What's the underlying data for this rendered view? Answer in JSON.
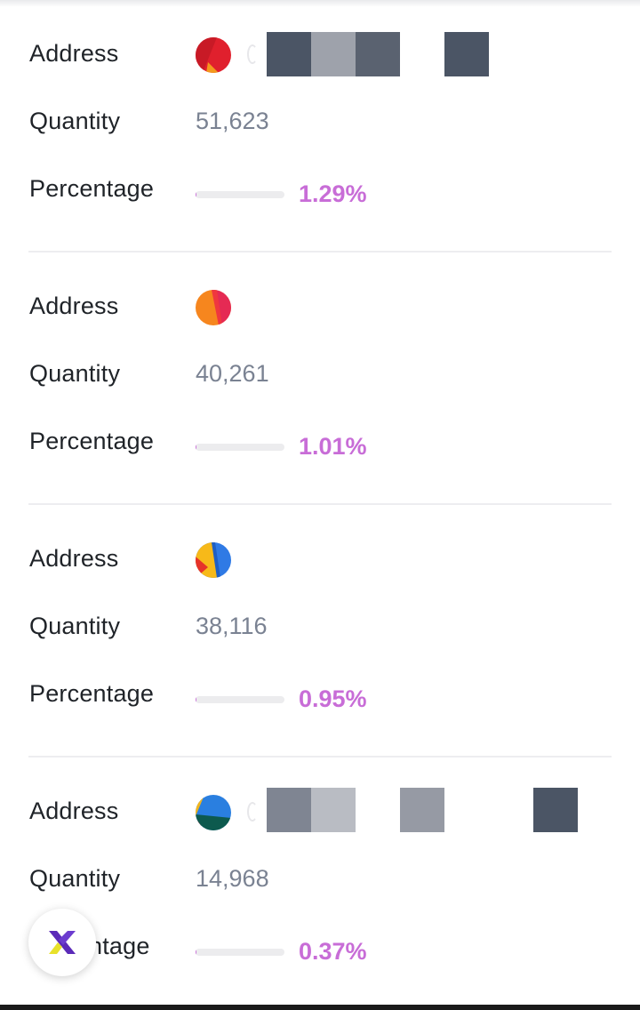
{
  "labels": {
    "address": "Address",
    "quantity": "Quantity",
    "percentage": "Percentage",
    "percentage_partial": "ntage"
  },
  "holders": [
    {
      "quantity": "51,623",
      "percentage": "1.29%",
      "percentage_value": 1.29,
      "avatar_icon": "red-gradient-avatar-icon"
    },
    {
      "quantity": "40,261",
      "percentage": "1.01%",
      "percentage_value": 1.01,
      "avatar_icon": "orange-pink-avatar-icon"
    },
    {
      "quantity": "38,116",
      "percentage": "0.95%",
      "percentage_value": 0.95,
      "avatar_icon": "blue-yellow-avatar-icon"
    },
    {
      "quantity": "14,968",
      "percentage": "0.37%",
      "percentage_value": 0.37,
      "avatar_icon": "blue-green-avatar-icon"
    }
  ],
  "colors": {
    "accent": "#c86dd7",
    "label_text": "#1f2328",
    "value_text": "#7a8292"
  },
  "fab": {
    "icon": "x-logo-icon"
  }
}
